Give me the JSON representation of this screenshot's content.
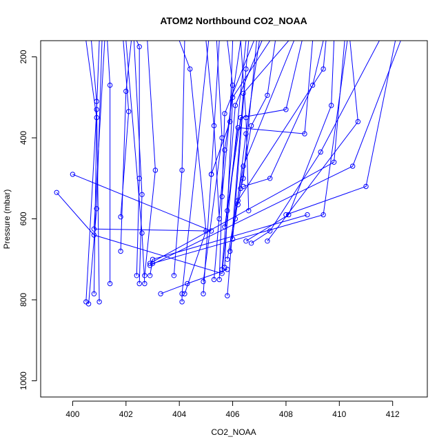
{
  "chart_data": {
    "type": "line",
    "title": "ATOM2 Northbound CO2_NOAA",
    "xlabel": "CO2_NOAA",
    "ylabel": "Pressure (mbar)",
    "xlim": [
      398.8,
      413.3
    ],
    "ylim": [
      1040,
      160
    ],
    "y_reversed": true,
    "x_ticks": [
      400,
      402,
      404,
      406,
      408,
      410,
      412
    ],
    "y_ticks": [
      200,
      400,
      600,
      800,
      1000
    ],
    "grid": false,
    "legend": "none",
    "series_color": "#0000ff",
    "marker": "open-circle",
    "series": [
      {
        "values": [
          [
            400.0,
            490
          ],
          [
            405.2,
            630
          ],
          [
            400.8,
            625
          ],
          [
            401.2,
            160
          ]
        ]
      },
      {
        "values": [
          [
            399.4,
            535
          ],
          [
            400.8,
            640
          ],
          [
            405.6,
            735
          ],
          [
            406.5,
            160
          ]
        ]
      },
      {
        "values": [
          [
            401.0,
            805
          ],
          [
            400.9,
            310
          ],
          [
            400.7,
            160
          ]
        ]
      },
      {
        "values": [
          [
            400.5,
            805
          ],
          [
            400.9,
            330
          ],
          [
            401.0,
            160
          ]
        ]
      },
      {
        "values": [
          [
            400.6,
            810
          ],
          [
            400.9,
            575
          ],
          [
            401.1,
            160
          ]
        ]
      },
      {
        "values": [
          [
            400.8,
            785
          ],
          [
            400.9,
            350
          ],
          [
            400.5,
            160
          ]
        ]
      },
      {
        "values": [
          [
            401.4,
            760
          ],
          [
            401.4,
            270
          ],
          [
            401.3,
            160
          ]
        ]
      },
      {
        "values": [
          [
            401.8,
            680
          ],
          [
            402.0,
            285
          ],
          [
            402.2,
            160
          ]
        ]
      },
      {
        "values": [
          [
            401.8,
            595
          ],
          [
            402.1,
            335
          ],
          [
            401.9,
            160
          ]
        ]
      },
      {
        "values": [
          [
            402.4,
            740
          ],
          [
            402.5,
            500
          ],
          [
            402.5,
            175
          ],
          [
            402.4,
            160
          ]
        ]
      },
      {
        "values": [
          [
            402.5,
            760
          ],
          [
            402.6,
            540
          ],
          [
            402.3,
            160
          ]
        ]
      },
      {
        "values": [
          [
            402.7,
            760
          ],
          [
            402.6,
            635
          ],
          [
            402.0,
            160
          ]
        ]
      },
      {
        "values": [
          [
            402.7,
            740
          ],
          [
            403.1,
            480
          ],
          [
            402.8,
            160
          ]
        ]
      },
      {
        "values": [
          [
            402.9,
            740
          ],
          [
            403.0,
            700
          ],
          [
            408.8,
            590
          ]
        ]
      },
      {
        "values": [
          [
            403.0,
            710
          ],
          [
            409.4,
            590
          ],
          [
            410.3,
            160
          ]
        ]
      },
      {
        "values": [
          [
            402.9,
            715
          ],
          [
            410.5,
            470
          ],
          [
            412.3,
            160
          ]
        ]
      },
      {
        "values": [
          [
            402.9,
            710
          ],
          [
            409.8,
            460
          ],
          [
            410.2,
            160
          ]
        ]
      },
      {
        "values": [
          [
            403.3,
            785
          ],
          [
            404.3,
            760
          ],
          [
            405.8,
            725
          ]
        ]
      },
      {
        "values": [
          [
            403.8,
            740
          ],
          [
            404.1,
            480
          ],
          [
            404.2,
            160
          ]
        ]
      },
      {
        "values": [
          [
            404.1,
            805
          ],
          [
            404.1,
            785
          ],
          [
            405.1,
            160
          ]
        ]
      },
      {
        "values": [
          [
            404.2,
            785
          ],
          [
            405.0,
            630
          ],
          [
            404.4,
            230
          ],
          [
            404.0,
            160
          ]
        ]
      },
      {
        "values": [
          [
            404.9,
            785
          ],
          [
            405.2,
            490
          ],
          [
            405.5,
            160
          ]
        ]
      },
      {
        "values": [
          [
            404.9,
            755
          ],
          [
            405.6,
            400
          ],
          [
            405.4,
            160
          ]
        ]
      },
      {
        "values": [
          [
            405.3,
            750
          ],
          [
            405.7,
            430
          ],
          [
            406.3,
            160
          ]
        ]
      },
      {
        "values": [
          [
            405.5,
            750
          ],
          [
            405.7,
            340
          ],
          [
            406.8,
            160
          ]
        ]
      },
      {
        "values": [
          [
            405.6,
            725
          ],
          [
            406.1,
            320
          ],
          [
            407.1,
            160
          ]
        ]
      },
      {
        "values": [
          [
            405.7,
            720
          ],
          [
            406.0,
            300
          ],
          [
            407.4,
            160
          ]
        ]
      },
      {
        "values": [
          [
            405.8,
            790
          ],
          [
            406.4,
            290
          ],
          [
            408.1,
            160
          ]
        ]
      },
      {
        "values": [
          [
            405.8,
            700
          ],
          [
            406.4,
            470
          ],
          [
            408.3,
            160
          ]
        ]
      },
      {
        "values": [
          [
            405.9,
            680
          ],
          [
            406.2,
            555
          ],
          [
            409.4,
            230
          ],
          [
            409.5,
            160
          ]
        ]
      },
      {
        "values": [
          [
            406.0,
            650
          ],
          [
            406.5,
            230
          ],
          [
            406.6,
            160
          ]
        ]
      },
      {
        "values": [
          [
            405.7,
            620
          ],
          [
            406.3,
            350
          ],
          [
            408.0,
            330
          ],
          [
            408.6,
            160
          ]
        ]
      },
      {
        "values": [
          [
            405.8,
            580
          ],
          [
            406.2,
            375
          ],
          [
            408.7,
            390
          ],
          [
            409.0,
            160
          ]
        ]
      },
      {
        "values": [
          [
            406.1,
            600
          ],
          [
            406.5,
            390
          ],
          [
            407.0,
            160
          ]
        ]
      },
      {
        "values": [
          [
            406.2,
            565
          ],
          [
            406.7,
            370
          ],
          [
            407.3,
            295
          ],
          [
            407.6,
            160
          ]
        ]
      },
      {
        "values": [
          [
            406.3,
            525
          ],
          [
            406.4,
            500
          ],
          [
            406.9,
            160
          ]
        ]
      },
      {
        "values": [
          [
            406.4,
            520
          ],
          [
            407.4,
            500
          ],
          [
            409.0,
            270
          ],
          [
            409.4,
            160
          ]
        ]
      },
      {
        "values": [
          [
            406.5,
            655
          ],
          [
            408.1,
            590
          ],
          [
            409.7,
            320
          ],
          [
            409.8,
            160
          ]
        ]
      },
      {
        "values": [
          [
            406.7,
            660
          ],
          [
            407.4,
            630
          ],
          [
            409.3,
            435
          ],
          [
            411.5,
            160
          ]
        ]
      },
      {
        "values": [
          [
            407.3,
            655
          ],
          [
            410.7,
            360
          ],
          [
            410.4,
            160
          ]
        ]
      },
      {
        "values": [
          [
            406.6,
            580
          ],
          [
            406.5,
            350
          ],
          [
            406.3,
            160
          ]
        ]
      },
      {
        "values": [
          [
            408.0,
            590
          ],
          [
            411.0,
            520
          ],
          [
            412.1,
            160
          ]
        ]
      },
      {
        "values": [
          [
            405.2,
            490
          ],
          [
            405.9,
            360
          ],
          [
            406.0,
            160
          ]
        ]
      },
      {
        "values": [
          [
            405.6,
            545
          ],
          [
            406.0,
            270
          ],
          [
            405.8,
            160
          ]
        ]
      },
      {
        "values": [
          [
            405.5,
            600
          ],
          [
            405.3,
            370
          ],
          [
            405.0,
            160
          ]
        ]
      }
    ]
  }
}
